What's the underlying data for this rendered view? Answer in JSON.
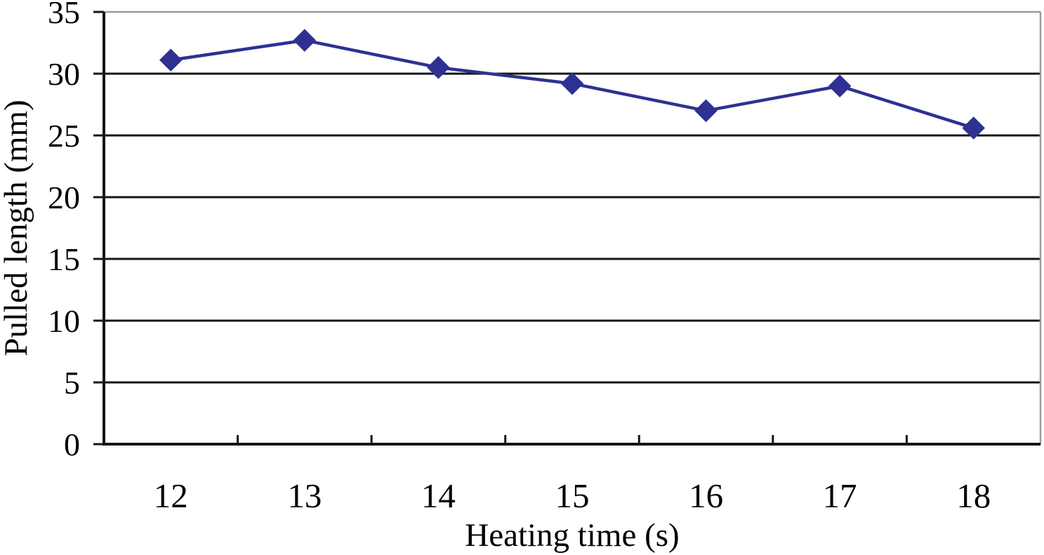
{
  "chart_data": {
    "type": "line",
    "title": "",
    "xlabel": "Heating time (s)",
    "ylabel": "Pulled length (mm)",
    "categories": [
      "12",
      "13",
      "14",
      "15",
      "16",
      "17",
      "18"
    ],
    "series": [
      {
        "name": "Pulled length",
        "values": [
          31.1,
          32.7,
          30.5,
          29.2,
          27.0,
          29.0,
          25.6
        ]
      }
    ],
    "ylim": [
      0,
      35
    ],
    "y_ticks": [
      0,
      5,
      10,
      15,
      20,
      25,
      30,
      35
    ],
    "grid": "horizontal",
    "legend": "none",
    "marker": "diamond",
    "colors": {
      "series": "#2E3192",
      "gridline": "#161616",
      "axis": "#161616",
      "plot_border": "#9b9b9b",
      "background": "#ffffff",
      "text": "#000000"
    }
  }
}
